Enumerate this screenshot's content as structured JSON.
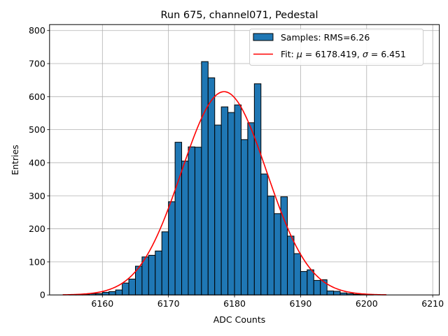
{
  "chart_data": {
    "type": "histogram",
    "title": "Run 675, channel071, Pedestal",
    "xlabel": "ADC Counts",
    "ylabel": "Entries",
    "xlim": [
      6152,
      6211
    ],
    "ylim": [
      0,
      818
    ],
    "xticks": [
      6160,
      6170,
      6180,
      6190,
      6200,
      6210
    ],
    "yticks": [
      0,
      100,
      200,
      300,
      400,
      500,
      600,
      700,
      800
    ],
    "grid": true,
    "legend_position": "top-right",
    "bin_width": 1,
    "histogram": {
      "label": "Samples: RMS=6.26",
      "color": "#1f77b4",
      "edgecolor": "#000000",
      "bin_starts": [
        6155,
        6156,
        6157,
        6158,
        6159,
        6160,
        6161,
        6162,
        6163,
        6164,
        6165,
        6166,
        6167,
        6168,
        6169,
        6170,
        6171,
        6172,
        6173,
        6174,
        6175,
        6176,
        6177,
        6178,
        6179,
        6180,
        6181,
        6182,
        6183,
        6184,
        6185,
        6186,
        6187,
        6188,
        6189,
        6190,
        6191,
        6192,
        6193,
        6194,
        6195,
        6196,
        6197,
        6198,
        6199,
        6200
      ],
      "counts": [
        1,
        1,
        2,
        4,
        4,
        8,
        10,
        15,
        36,
        48,
        87,
        115,
        120,
        133,
        191,
        282,
        462,
        405,
        448,
        447,
        706,
        657,
        514,
        569,
        552,
        575,
        470,
        521,
        639,
        366,
        299,
        246,
        297,
        178,
        125,
        71,
        76,
        44,
        46,
        12,
        11,
        6,
        4,
        2,
        1,
        1
      ]
    },
    "fit": {
      "label_prefix": "Fit: ",
      "mu_label": "μ",
      "mu": 6178.419,
      "sigma_label": "σ",
      "sigma": 6.451,
      "amplitude": 615,
      "x_range": [
        6154,
        6203
      ],
      "color": "#ff0000"
    }
  }
}
